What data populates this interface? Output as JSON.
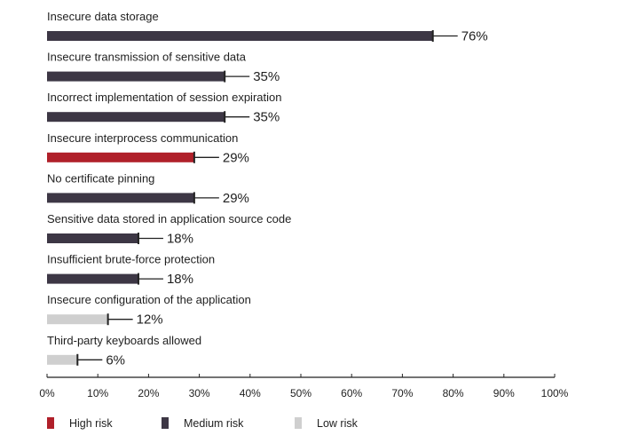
{
  "colors": {
    "high": "#b0202a",
    "medium": "#3d3745",
    "low": "#cfcfcf",
    "axis": "#222222"
  },
  "chart_data": {
    "type": "bar",
    "orientation": "horizontal",
    "categories": [
      "Insecure data storage",
      "Insecure transmission of sensitive data",
      "Incorrect implementation of session expiration",
      "Insecure interprocess communication",
      "No certificate pinning",
      "Sensitive data stored in application source code",
      "Insufficient brute-force protection",
      "Insecure configuration of the application",
      "Third-party keyboards allowed"
    ],
    "values": [
      76,
      35,
      35,
      29,
      29,
      18,
      18,
      12,
      6
    ],
    "value_labels": [
      "76%",
      "35%",
      "35%",
      "29%",
      "29%",
      "18%",
      "18%",
      "12%",
      "6%"
    ],
    "risk": [
      "medium",
      "medium",
      "medium",
      "high",
      "medium",
      "medium",
      "medium",
      "low",
      "low"
    ],
    "xlim": [
      0,
      100
    ],
    "xticks": [
      "0%",
      "10%",
      "20%",
      "30%",
      "40%",
      "50%",
      "60%",
      "70%",
      "80%",
      "90%",
      "100%"
    ],
    "legend": [
      {
        "key": "high",
        "label": "High risk"
      },
      {
        "key": "medium",
        "label": "Medium risk"
      },
      {
        "key": "low",
        "label": "Low risk"
      }
    ],
    "legend_position": "bottom",
    "grid": false
  }
}
